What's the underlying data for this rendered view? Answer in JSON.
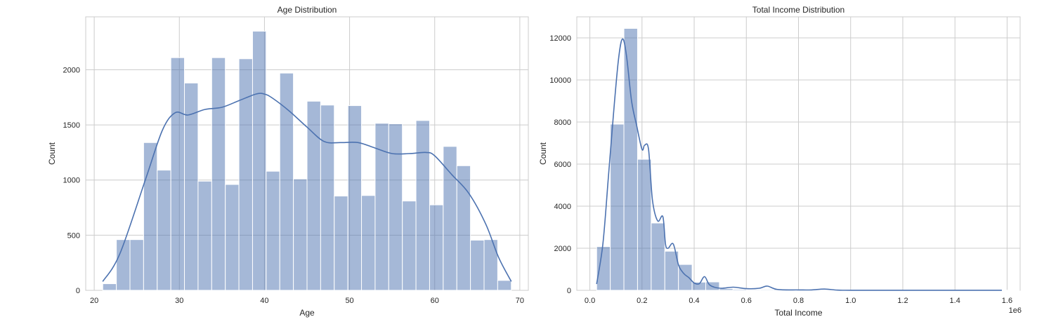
{
  "chart_data": [
    {
      "type": "bar",
      "title": "Age Distribution",
      "xlabel": "Age",
      "ylabel": "Count",
      "xlim": [
        19,
        71
      ],
      "ylim": [
        0,
        2480
      ],
      "xticks": [
        20,
        30,
        40,
        50,
        60,
        70
      ],
      "yticks": [
        0,
        500,
        1000,
        1500,
        2000
      ],
      "grid": true,
      "bar_color": "#4c72b0",
      "bins": {
        "start": 21,
        "width": 1.6,
        "values": [
          60,
          460,
          460,
          1340,
          1090,
          2110,
          1880,
          990,
          2110,
          960,
          2100,
          2350,
          1080,
          1970,
          1010,
          1715,
          1680,
          855,
          1675,
          860,
          1515,
          1510,
          810,
          1540,
          775,
          1305,
          1130,
          455,
          460,
          90
        ]
      },
      "kde": {
        "x": [
          21,
          23,
          26,
          28,
          29.5,
          31,
          33,
          35,
          37,
          39,
          40,
          41,
          43,
          45,
          47,
          49,
          51,
          53,
          55,
          57,
          59,
          60,
          62,
          64,
          66,
          67.5,
          69
        ],
        "y": [
          80,
          330,
          1000,
          1450,
          1610,
          1590,
          1640,
          1660,
          1720,
          1780,
          1780,
          1740,
          1620,
          1480,
          1350,
          1340,
          1340,
          1290,
          1240,
          1240,
          1250,
          1220,
          1050,
          880,
          600,
          300,
          80
        ]
      }
    },
    {
      "type": "bar",
      "title": "Total Income Distribution",
      "xlabel": "Total Income",
      "ylabel": "Count",
      "offset_label": "1e6",
      "xlim": [
        -0.05,
        1.65
      ],
      "ylim": [
        0,
        13000
      ],
      "xticks": [
        0.0,
        0.2,
        0.4,
        0.6,
        0.8,
        1.0,
        1.2,
        1.4,
        1.6
      ],
      "xtick_labels": [
        "0.0",
        "0.2",
        "0.4",
        "0.6",
        "0.8",
        "1.0",
        "1.2",
        "1.4",
        "1.6"
      ],
      "yticks": [
        0,
        2000,
        4000,
        6000,
        8000,
        10000,
        12000
      ],
      "grid": true,
      "bar_color": "#4c72b0",
      "bins": {
        "start": 0.026,
        "width": 0.0523,
        "values": [
          2080,
          7900,
          12450,
          6230,
          3200,
          1860,
          1230,
          390,
          400,
          80,
          50,
          40,
          40,
          50,
          30,
          20,
          15,
          15,
          10,
          8,
          5,
          5,
          5,
          5,
          5,
          5,
          5,
          5,
          5,
          5,
          5
        ]
      },
      "kde": {
        "x": [
          0.026,
          0.05,
          0.07,
          0.09,
          0.11,
          0.125,
          0.14,
          0.16,
          0.18,
          0.2,
          0.21,
          0.225,
          0.24,
          0.26,
          0.28,
          0.29,
          0.3,
          0.32,
          0.34,
          0.36,
          0.38,
          0.4,
          0.42,
          0.44,
          0.46,
          0.5,
          0.55,
          0.6,
          0.65,
          0.68,
          0.72,
          0.8,
          0.85,
          0.9,
          0.95,
          1.0,
          1.2,
          1.4,
          1.58
        ],
        "y": [
          300,
          2200,
          5200,
          8300,
          11000,
          11950,
          11200,
          9000,
          7800,
          6700,
          6900,
          6700,
          4300,
          3300,
          3500,
          2200,
          2000,
          2200,
          1200,
          800,
          600,
          350,
          320,
          650,
          250,
          100,
          150,
          80,
          100,
          200,
          40,
          20,
          20,
          60,
          10,
          5,
          5,
          5,
          5
        ]
      }
    }
  ]
}
